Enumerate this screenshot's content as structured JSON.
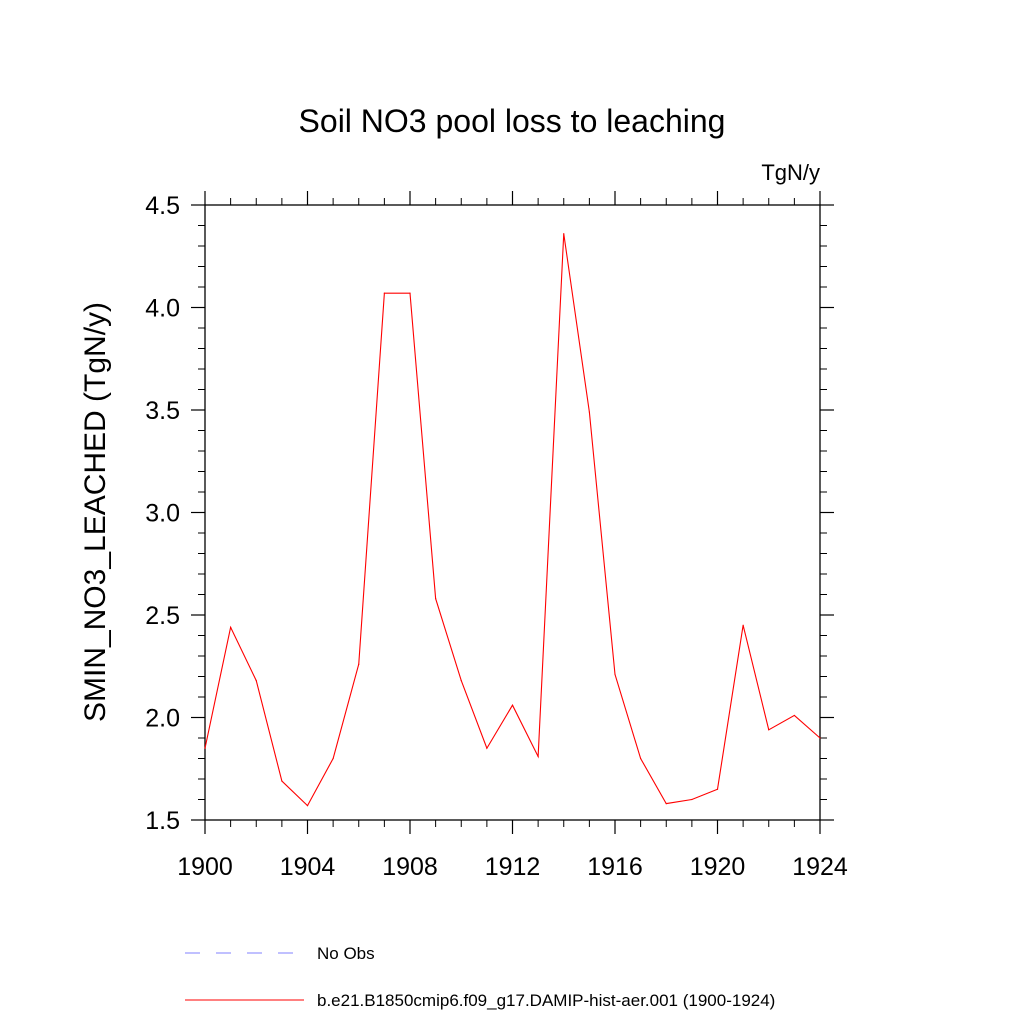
{
  "chart_data": {
    "type": "line",
    "title": "Soil NO3 pool loss to leaching",
    "units_label": "TgN/y",
    "ylabel": "SMIN_NO3_LEACHED  (TgN/y)",
    "xlabel": "",
    "xlim": [
      1900,
      1924
    ],
    "ylim": [
      1.5,
      4.5
    ],
    "x_ticks": [
      1900,
      1904,
      1908,
      1912,
      1916,
      1920,
      1924
    ],
    "x_tick_labels": [
      "1900",
      "1904",
      "1908",
      "1912",
      "1916",
      "1920",
      "1924"
    ],
    "y_ticks": [
      1.5,
      2.0,
      2.5,
      3.0,
      3.5,
      4.0,
      4.5
    ],
    "y_tick_labels": [
      "1.5",
      "2.0",
      "2.5",
      "3.0",
      "3.5",
      "4.0",
      "4.5"
    ],
    "grid": false,
    "x": [
      1900,
      1901,
      1902,
      1903,
      1904,
      1905,
      1906,
      1907,
      1908,
      1909,
      1910,
      1911,
      1912,
      1913,
      1914,
      1915,
      1916,
      1917,
      1918,
      1919,
      1920,
      1921,
      1922,
      1923,
      1924
    ],
    "series": [
      {
        "name": "b.e21.B1850cmip6.f09_g17.DAMIP-hist-aer.001 (1900-1924)",
        "color": "#ff0000",
        "values": [
          1.85,
          2.44,
          2.18,
          1.69,
          1.57,
          1.8,
          2.26,
          4.07,
          4.07,
          2.58,
          2.18,
          1.85,
          2.06,
          1.81,
          4.36,
          3.49,
          2.21,
          1.8,
          1.58,
          1.6,
          1.65,
          2.45,
          1.94,
          2.01,
          1.9
        ]
      }
    ],
    "legend": {
      "placement": "bottom",
      "entries": [
        {
          "label": "No Obs",
          "color": "#8080ff",
          "style": "dashed"
        },
        {
          "label": "b.e21.B1850cmip6.f09_g17.DAMIP-hist-aer.001 (1900-1924)",
          "color": "#ff0000",
          "style": "solid"
        }
      ]
    }
  }
}
